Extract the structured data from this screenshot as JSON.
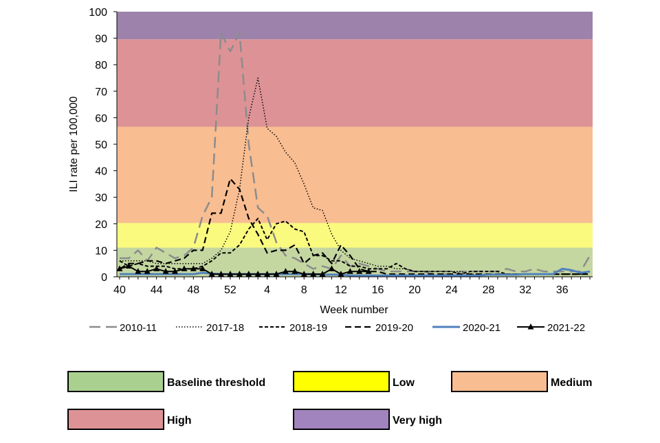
{
  "chart_data": {
    "type": "line",
    "xlabel": "Week number",
    "ylabel": "ILI rate per 100,000",
    "ylim": [
      0,
      100
    ],
    "x_ticks": [
      "40",
      "44",
      "48",
      "52",
      "4",
      "8",
      "12",
      "16",
      "20",
      "24",
      "28",
      "32",
      "36"
    ],
    "y_ticks": [
      0,
      10,
      20,
      30,
      40,
      50,
      60,
      70,
      80,
      90,
      100
    ],
    "weeks": [
      "40",
      "41",
      "42",
      "43",
      "44",
      "45",
      "46",
      "47",
      "48",
      "49",
      "50",
      "51",
      "52",
      "1",
      "2",
      "3",
      "4",
      "5",
      "6",
      "7",
      "8",
      "9",
      "10",
      "11",
      "12",
      "13",
      "14",
      "15",
      "16",
      "17",
      "18",
      "19",
      "20",
      "21",
      "22",
      "23",
      "24",
      "25",
      "26",
      "27",
      "28",
      "29",
      "30",
      "31",
      "32",
      "33",
      "34",
      "35",
      "36",
      "37",
      "38",
      "39"
    ],
    "bands": [
      {
        "label": "Baseline threshold",
        "from": 0,
        "to": 11.0,
        "color": "#c4d7a1"
      },
      {
        "label": "Low",
        "from": 11.0,
        "to": 20.3,
        "color": "#fafa7e"
      },
      {
        "label": "Medium",
        "from": 20.3,
        "to": 56.6,
        "color": "#f8bd91"
      },
      {
        "label": "High",
        "from": 56.6,
        "to": 89.6,
        "color": "#dd9396"
      },
      {
        "label": "Very high",
        "from": 89.6,
        "to": 100,
        "color": "#9d83ab"
      }
    ],
    "band_legend_colors": {
      "Baseline threshold": "#a9d08e",
      "Low": "#ffff00",
      "Medium": "#f8bd91",
      "High": "#dd9396",
      "Very high": "#a184be"
    },
    "series": [
      {
        "name": "2010-11",
        "color": "#8c8c8c",
        "style": "longdash",
        "values": [
          7,
          7,
          10,
          6,
          11,
          9,
          7,
          8,
          11,
          23,
          30,
          92,
          85,
          92,
          50,
          26,
          23,
          13,
          8,
          7,
          5,
          3,
          4,
          3,
          8,
          4,
          5,
          4,
          3,
          2,
          2,
          2,
          2,
          2,
          1,
          1,
          1,
          2,
          2,
          2,
          2,
          2,
          3,
          2,
          2,
          3,
          2,
          2,
          2,
          2,
          2,
          8
        ]
      },
      {
        "name": "2017-18",
        "color": "#000000",
        "style": "dotted",
        "values": [
          6,
          6,
          6,
          6,
          5,
          5,
          5,
          5,
          5,
          5,
          7,
          10,
          17,
          33,
          60,
          75,
          56,
          53,
          47,
          43,
          35,
          26,
          25,
          16,
          10,
          7,
          6,
          5,
          4,
          4,
          3,
          3,
          2,
          2,
          2,
          2,
          2,
          2,
          1,
          1,
          1,
          1,
          1,
          1,
          1,
          1,
          1,
          1,
          1,
          1,
          1,
          2
        ]
      },
      {
        "name": "2018-19",
        "color": "#000000",
        "style": "shortdash",
        "values": [
          6,
          4,
          5,
          4,
          4,
          4,
          3,
          3,
          3,
          4,
          6,
          9,
          9,
          12,
          18,
          22,
          14,
          20,
          21,
          18,
          17,
          8,
          8,
          6,
          6,
          4,
          4,
          3,
          3,
          3,
          5,
          3,
          2,
          2,
          2,
          2,
          2,
          1,
          2,
          2,
          2,
          2,
          1,
          1,
          1,
          1,
          1,
          1,
          1,
          1,
          1,
          2
        ]
      },
      {
        "name": "2019-20",
        "color": "#000000",
        "style": "dash",
        "values": [
          3,
          5,
          5,
          6,
          6,
          5,
          6,
          7,
          10,
          10,
          24,
          24,
          37,
          33,
          22,
          16,
          9,
          10,
          10,
          12,
          5,
          8,
          9,
          5,
          12,
          8,
          3,
          2,
          2,
          1,
          1,
          1,
          1,
          1,
          1,
          1,
          1,
          1,
          1,
          1,
          1,
          1,
          1,
          1,
          1,
          1,
          1,
          1,
          1,
          1,
          1,
          1
        ]
      },
      {
        "name": "2020-21",
        "color": "#4f81bd",
        "style": "solid",
        "values": [
          1,
          1,
          1,
          1,
          1,
          1,
          1,
          1,
          1,
          1.5,
          1.2,
          1,
          1,
          1,
          1,
          1,
          1,
          1,
          1,
          1,
          1,
          1,
          0.8,
          0.8,
          0.8,
          0.5,
          0.5,
          0.5,
          0.5,
          0.5,
          0.5,
          0.5,
          0.5,
          0.5,
          0.5,
          0.5,
          0.5,
          0.5,
          0.5,
          0.5,
          0.8,
          0.8,
          0.8,
          0.8,
          1,
          1,
          1,
          1,
          3,
          2.5,
          1.5,
          2
        ]
      },
      {
        "name": "2021-22",
        "color": "#000000",
        "style": "marker",
        "values": [
          3,
          4,
          2,
          2,
          3,
          2,
          2,
          3,
          3,
          3,
          1,
          1,
          1,
          1,
          1,
          1,
          1,
          1,
          2,
          2,
          1,
          1,
          1,
          3,
          1,
          2,
          2,
          2
        ]
      }
    ]
  }
}
